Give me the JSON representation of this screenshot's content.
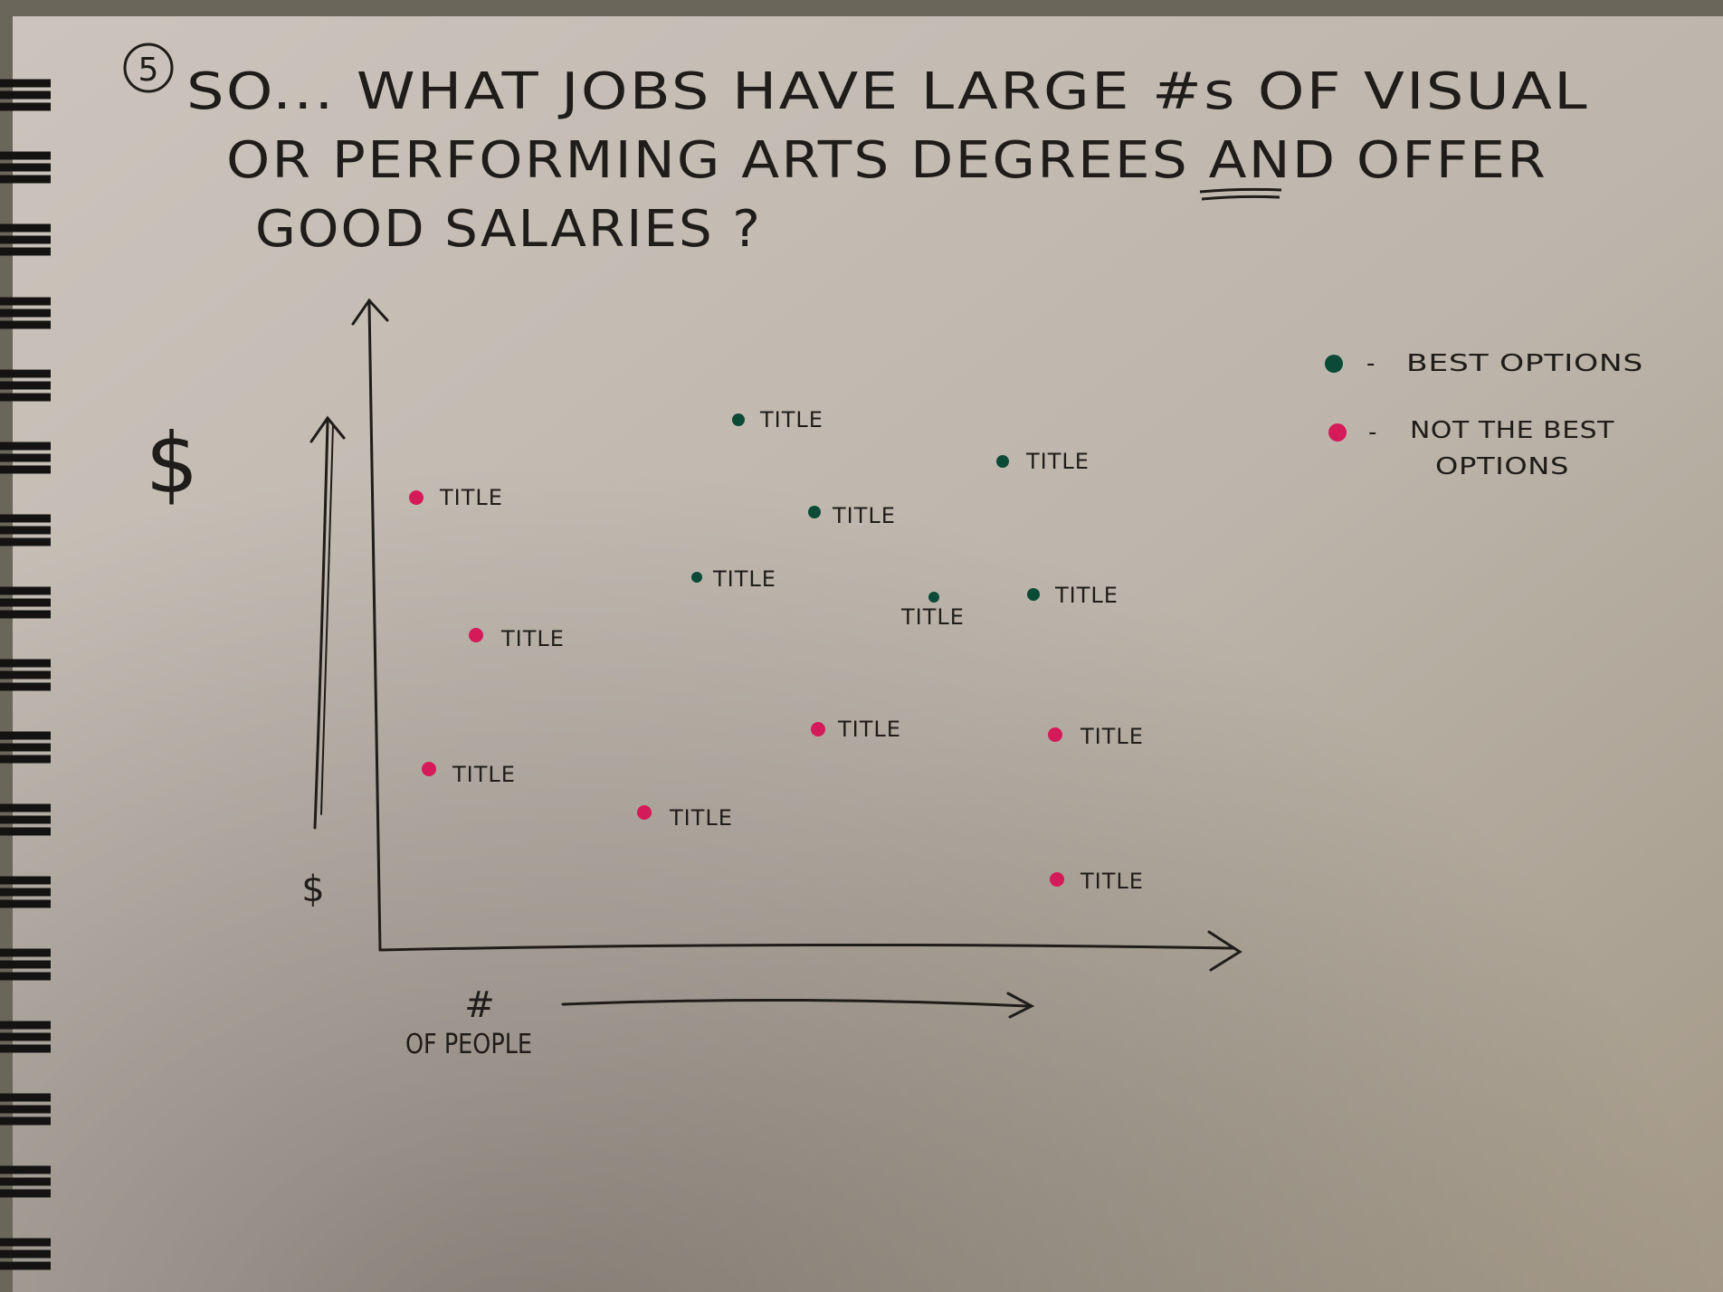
{
  "sketch": {
    "number": "5",
    "title_lines": [
      "SO...  WHAT JOBS HAVE LARGE #s OF VISUAL",
      "OR PERFORMING ARTS DEGREES AND OFFER",
      "GOOD SALARIES ?"
    ],
    "emphasized_word": "AND",
    "legend": {
      "best_dash": "-",
      "best": "BEST OPTIONS",
      "not_best_dash": "-",
      "not_best_line1": "NOT THE BEST",
      "not_best_line2": "OPTIONS"
    },
    "y_axis": {
      "top_symbol": "$",
      "bottom_symbol": "$"
    },
    "x_axis": {
      "symbol": "#",
      "label": "OF PEOPLE"
    },
    "point_label": "TITLE",
    "colors": {
      "best": "#0b4a36",
      "not_best": "#d51a5a",
      "ink": "#1f1c19"
    }
  }
}
